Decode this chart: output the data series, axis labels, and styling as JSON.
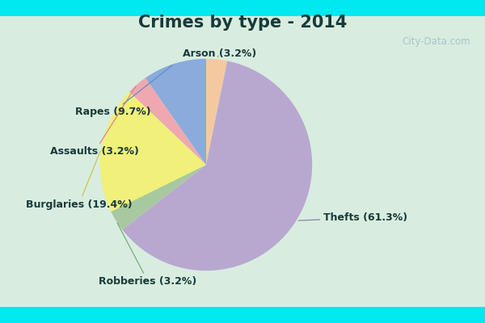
{
  "title": "Crimes by type - 2014",
  "labels_order": [
    "Arson",
    "Thefts",
    "Robberies",
    "Burglaries",
    "Assaults",
    "Rapes"
  ],
  "values_order": [
    3.2,
    61.3,
    3.2,
    19.4,
    3.2,
    9.7
  ],
  "colors_order": [
    "#f5c9a0",
    "#b8a8d0",
    "#a8c8a0",
    "#f0f07a",
    "#f0a8b0",
    "#8aabdb"
  ],
  "label_texts_order": [
    "Arson (3.2%)",
    "Thefts (61.3%)",
    "Robberies (3.2%)",
    "Burglaries (19.4%)",
    "Assaults (3.2%)",
    "Rapes (9.7%)"
  ],
  "background_border": "#00e8f0",
  "background_main": "#d8ede0",
  "title_fontsize": 15,
  "label_fontsize": 9,
  "watermark": "City-Data.com",
  "watermark_color": "#a0bcc8"
}
